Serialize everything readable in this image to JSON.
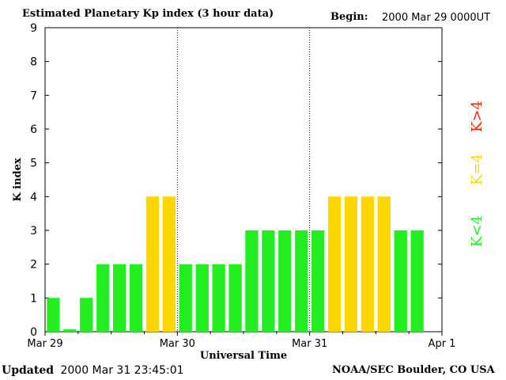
{
  "header": {
    "title": "Estimated Planetary Kp index (3 hour data)",
    "begin_label": "Begin:",
    "begin_value": "2000 Mar 29 0000UT"
  },
  "footer": {
    "updated_label": "Updated",
    "updated_value": "2000 Mar 31 23:45:01",
    "source": "NOAA/SEC Boulder, CO USA"
  },
  "chart_data": {
    "type": "bar",
    "title": "Estimated Planetary Kp index (3 hour data)",
    "xlabel": "Universal Time",
    "ylabel": "K index",
    "ylim": [
      0,
      9
    ],
    "yticks": [
      0,
      1,
      2,
      3,
      4,
      5,
      6,
      7,
      8,
      9
    ],
    "x_ticks": [
      "Mar 29",
      "Mar 30",
      "Mar 31",
      "Apr 1"
    ],
    "day_dividers": [
      "Mar 30",
      "Mar 31"
    ],
    "bar_interval_hours": 3,
    "values": [
      1,
      0,
      1,
      2,
      2,
      2,
      4,
      4,
      2,
      2,
      2,
      2,
      3,
      3,
      3,
      3,
      3,
      4,
      4,
      4,
      4,
      3,
      3
    ],
    "legend": [
      {
        "label": "K<4",
        "color": "#22ee22"
      },
      {
        "label": "K=4",
        "color": "#ffd700"
      },
      {
        "label": "K>4",
        "color": "#ff2200"
      }
    ],
    "colors": {
      "low": "#22ee22",
      "storm_threshold": "#ffd700",
      "high": "#ff2200"
    }
  }
}
